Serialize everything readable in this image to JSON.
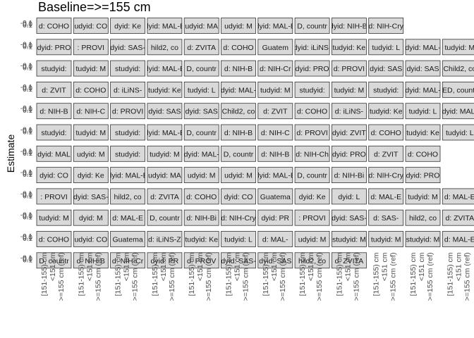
{
  "chart_data": {
    "type": "scatter",
    "title": "Baseline=>=155 cm",
    "ylabel": "Estimate",
    "xlabel": "",
    "x_categories": [
      "[151-155) cm",
      "<151 cm",
      ">=155 cm (ref)"
    ],
    "y_tick_labels": [
      "-0.1",
      "0.0",
      "0.1"
    ],
    "ylim": [
      -0.1,
      0.1
    ],
    "strip_labels": [
      [
        "d: COHO",
        "udyid: CO",
        "dyid: Ke",
        "dyid: MAL-E",
        "udyid: MA",
        "udyid: M",
        "dyid: MAL-E",
        "D, countr",
        "dyid: NIH-Bi",
        "d: NIH-Cry"
      ],
      [
        "dyid: PRO",
        ": PROVI",
        "dyid: SAS-",
        "hild2, co",
        "d: ZVITA",
        "d: COHO",
        "Guatem",
        "dyid: iLiNS-",
        "tudyid: Ke",
        "tudyid: L",
        "dyid: MAL-",
        "tudyid: M"
      ],
      [
        "studyid: ",
        "tudyid: M",
        "studyid: ",
        "dyid: MAL-E",
        "D, countr",
        "d: NIH-B",
        "d: NIH-Cr",
        "dyid: PRO",
        "d: PROVI",
        "dyid: SAS",
        "dyid: SAS",
        "Child2, co"
      ],
      [
        "d: ZVIT",
        "d: COHO",
        "d: iLiNS-",
        "tudyid: Ke",
        "tudyid: L",
        "dyid: MAL-",
        "tudyid: M",
        "studyid: ",
        "tudyid: M",
        "studyid: ",
        "dyid: MAL-",
        "ED, countr"
      ],
      [
        "d: NIH-B",
        "d: NIH-C",
        "d: PROVI",
        "dyid: SAS",
        "dyid: SAS",
        "Child2, co",
        "d: ZVIT",
        "d: COHO",
        "d: iLiNS-",
        "tudyid: Ke",
        "tudyid: L",
        "dyid: MAL-"
      ],
      [
        "studyid: ",
        "tudyid: M",
        "studyid: ",
        "dyid: MAL-E",
        "D, countr",
        "d: NIH-B",
        "d: NIH-C",
        "d: PROVI",
        "dyid: ZVIT",
        "d: COHO",
        "tudyid: Ke",
        "tudyid: L"
      ],
      [
        "dyid: MAL",
        "udyid: M",
        "studyid: ",
        "tudyid: M",
        "dyid: MAL-",
        "D, countr",
        "d: NIH-B",
        "d: NIH-Ch",
        "dyid: PRO",
        "d: ZVIT",
        "d: COHO"
      ],
      [
        "dyid: CO",
        "dyid: Ke",
        "dyid: MAL-E",
        "udyid: MA",
        "udyid: M",
        "udyid: M",
        "dyid: MAL-E",
        "D, countr",
        "d: NIH-Bi",
        "d: NIH-Cry",
        "dyid: PRO"
      ],
      [
        ": PROVI",
        "dyid: SAS-",
        "hild2, co",
        "d: ZVITA",
        "d: COHO",
        "dyid: CO",
        "Guatema",
        "dyid: Ke",
        "dyid: L",
        "d: MAL-E",
        "tudyid: M",
        "d: MAL-E"
      ],
      [
        "tudyid: M",
        "dyid: M",
        "d: MAL-E",
        "D, countr",
        "d: NIH-Bi",
        "d: NIH-Cry",
        "dyid: PR",
        ": PROVI",
        "dyid: SAS-",
        "d: SAS-",
        "hild2, co",
        "d: ZVITA"
      ],
      [
        "d: COHO",
        "udyid: CO",
        "Guatema",
        "d: iLiNS-Z",
        "tudyid: Ke",
        "tudyid: L",
        "d: MAL-",
        "udyid: M",
        "studyid: M",
        "tudyid: M",
        "studyid: M",
        "d: MAL-E"
      ],
      [
        "D, countr",
        "d: NIH-B",
        "d: NIH-Cr",
        "dyid: PR",
        "d: PROV",
        "dyid: SAS-",
        "dyid: SAS",
        "hild2, co",
        "d: ZVITA"
      ]
    ]
  }
}
